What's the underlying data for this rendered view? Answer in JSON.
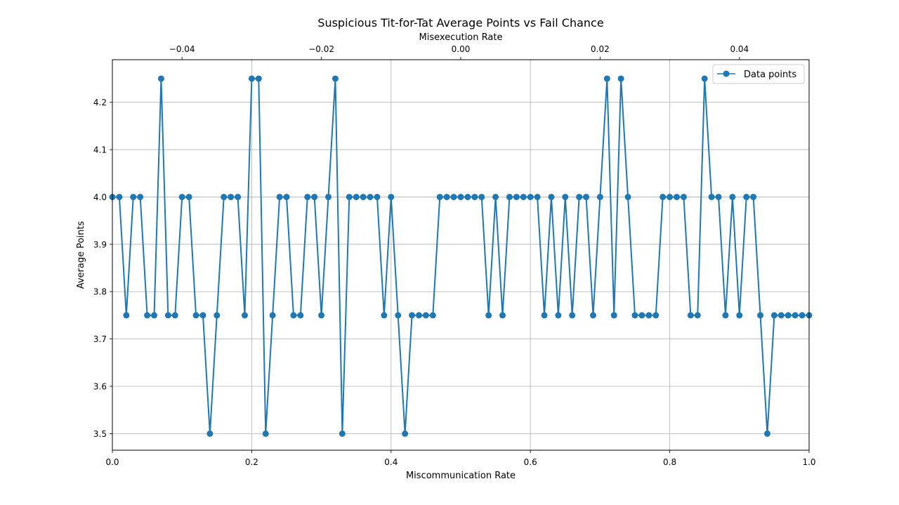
{
  "chart_data": {
    "type": "line",
    "title": "Suspicious Tit-for-Tat Average Points vs Fail Chance",
    "xlabel": "Miscommunication Rate",
    "ylabel": "Average Points",
    "top_xlabel": "Misexecution Rate",
    "xlim": [
      0,
      1
    ],
    "ylim": [
      3.465,
      4.29
    ],
    "top_xlim": [
      -0.05,
      0.05
    ],
    "x_ticks": [
      "0.0",
      "0.2",
      "0.4",
      "0.6",
      "0.8",
      "1.0"
    ],
    "top_x_ticks": [
      "−0.04",
      "−0.02",
      "0.00",
      "0.02",
      "0.04"
    ],
    "y_ticks": [
      "3.5",
      "3.6",
      "3.7",
      "3.8",
      "3.9",
      "4.0",
      "4.1",
      "4.2"
    ],
    "grid": true,
    "legend_position": "top-right",
    "color": "#1f77b4",
    "series": [
      {
        "name": "Data points",
        "x": [
          0.0,
          0.01,
          0.02,
          0.03,
          0.04,
          0.05,
          0.06,
          0.07,
          0.08,
          0.09,
          0.1,
          0.11,
          0.12,
          0.13,
          0.14,
          0.15,
          0.16,
          0.17,
          0.18,
          0.19,
          0.2,
          0.21,
          0.22,
          0.23,
          0.24,
          0.25,
          0.26,
          0.27,
          0.28,
          0.29,
          0.3,
          0.31,
          0.32,
          0.33,
          0.34,
          0.35,
          0.36,
          0.37,
          0.38,
          0.39,
          0.4,
          0.41,
          0.42,
          0.43,
          0.44,
          0.45,
          0.46,
          0.47,
          0.48,
          0.49,
          0.5,
          0.51,
          0.52,
          0.53,
          0.54,
          0.55,
          0.56,
          0.57,
          0.58,
          0.59,
          0.6,
          0.61,
          0.62,
          0.63,
          0.64,
          0.65,
          0.66,
          0.67,
          0.68,
          0.69,
          0.7,
          0.71,
          0.72,
          0.73,
          0.74,
          0.75,
          0.76,
          0.77,
          0.78,
          0.79,
          0.8,
          0.81,
          0.82,
          0.83,
          0.84,
          0.85,
          0.86,
          0.87,
          0.88,
          0.89,
          0.9,
          0.91,
          0.92,
          0.93,
          0.94,
          0.95,
          0.96,
          0.97,
          0.98,
          0.99,
          1.0
        ],
        "y": [
          4.0,
          4.0,
          3.75,
          4.0,
          4.0,
          3.75,
          3.75,
          4.25,
          3.75,
          3.75,
          4.0,
          4.0,
          3.75,
          3.75,
          3.5,
          3.75,
          4.0,
          4.0,
          4.0,
          3.75,
          4.25,
          4.25,
          3.5,
          3.75,
          4.0,
          4.0,
          3.75,
          3.75,
          4.0,
          4.0,
          3.75,
          4.0,
          4.25,
          3.5,
          4.0,
          4.0,
          4.0,
          4.0,
          4.0,
          3.75,
          4.0,
          3.75,
          3.5,
          3.75,
          3.75,
          3.75,
          3.75,
          4.0,
          4.0,
          4.0,
          4.0,
          4.0,
          4.0,
          4.0,
          3.75,
          4.0,
          3.75,
          4.0,
          4.0,
          4.0,
          4.0,
          4.0,
          3.75,
          4.0,
          3.75,
          4.0,
          3.75,
          4.0,
          4.0,
          3.75,
          4.0,
          4.25,
          3.75,
          4.25,
          4.0,
          3.75,
          3.75,
          3.75,
          3.75,
          4.0,
          4.0,
          4.0,
          4.0,
          3.75,
          3.75,
          4.25,
          4.0,
          4.0,
          3.75,
          4.0,
          3.75,
          4.0,
          4.0,
          3.75,
          3.5,
          3.75,
          3.75,
          3.75,
          3.75,
          3.75,
          3.75
        ]
      }
    ]
  }
}
